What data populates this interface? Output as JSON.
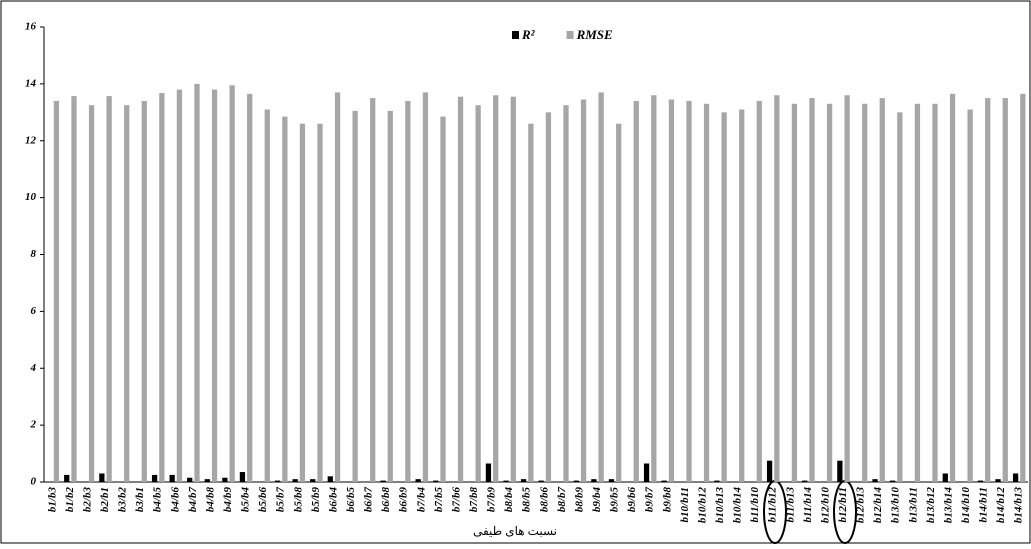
{
  "chart_data": {
    "type": "bar",
    "x_label": "نسبت های طیفی",
    "categories": [
      "b1/b3",
      "b1/b2",
      "b2/b3",
      "b2/b1",
      "b3/b2",
      "b3/b1",
      "b4/b5",
      "b4/b6",
      "b4/b7",
      "b4/b8",
      "b4/b9",
      "b5/b4",
      "b5/b6",
      "b5/b7",
      "b5/b8",
      "b5/b9",
      "b6/b4",
      "b6/b5",
      "b6/b7",
      "b6/b8",
      "b6/b9",
      "b7/b4",
      "b7/b5",
      "b7/b6",
      "b7/b8",
      "b7/b9",
      "b8/b4",
      "b8/b5",
      "b8/b6",
      "b8/b7",
      "b8/b9",
      "b9/b4",
      "b9/b5",
      "b9/b6",
      "b9/b7",
      "b9/b8",
      "b10/b11",
      "b10/b12",
      "b10/b13",
      "b10/b14",
      "b11/b10",
      "b11/b12",
      "b11/b13",
      "b11/b14",
      "b12/b10",
      "b12/b11",
      "b12/b13",
      "b12/b14",
      "b13/b10",
      "b13/b11",
      "b13/b12",
      "b13/b14",
      "b14/b10",
      "b14/b11",
      "b14/b12",
      "b14/b13"
    ],
    "series": [
      {
        "name": "R²",
        "color": "#000000",
        "values": [
          0,
          0.25,
          0,
          0.3,
          0,
          0,
          0.25,
          0.25,
          0.15,
          0.1,
          0.15,
          0.35,
          0,
          0.05,
          0.1,
          0.1,
          0.2,
          0,
          0,
          0.05,
          0,
          0.1,
          0.05,
          0,
          0,
          0.65,
          0.05,
          0.1,
          0.05,
          0,
          0.05,
          0.1,
          0.1,
          0,
          0.65,
          0.05,
          0,
          0,
          0.05,
          0,
          0,
          0.75,
          0,
          0.05,
          0,
          0.75,
          0,
          0.1,
          0.05,
          0,
          0,
          0.3,
          0,
          0.05,
          0.1,
          0.3
        ]
      },
      {
        "name": "RMSE",
        "color": "#a6a6a6",
        "values": [
          13.4,
          13.57,
          13.25,
          13.57,
          13.25,
          13.4,
          13.68,
          13.8,
          14.0,
          13.8,
          13.95,
          13.65,
          13.1,
          12.85,
          12.6,
          12.6,
          13.7,
          13.05,
          13.5,
          13.05,
          13.4,
          13.7,
          12.85,
          13.55,
          13.25,
          13.6,
          13.55,
          12.6,
          13.0,
          13.25,
          13.45,
          13.7,
          12.6,
          13.4,
          13.6,
          13.45,
          13.4,
          13.3,
          13.0,
          13.1,
          13.4,
          13.6,
          13.3,
          13.5,
          13.3,
          13.6,
          13.3,
          13.5,
          13.0,
          13.3,
          13.3,
          13.65,
          13.1,
          13.5,
          13.5,
          13.65
        ]
      }
    ],
    "ylim": [
      0,
      16
    ],
    "yticks": [
      0,
      2,
      4,
      6,
      8,
      10,
      12,
      14,
      16
    ],
    "grid": false
  }
}
